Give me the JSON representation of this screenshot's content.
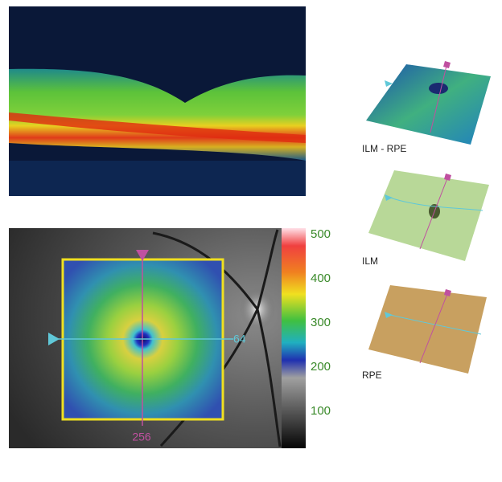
{
  "thickness_map": {
    "scale_labels": [
      500,
      400,
      300,
      200,
      100
    ],
    "horizontal_scan_label": 64,
    "vertical_scan_label": 256
  },
  "surfaces": [
    {
      "label": "ILM - RPE"
    },
    {
      "label": "ILM"
    },
    {
      "label": "RPE"
    }
  ]
}
